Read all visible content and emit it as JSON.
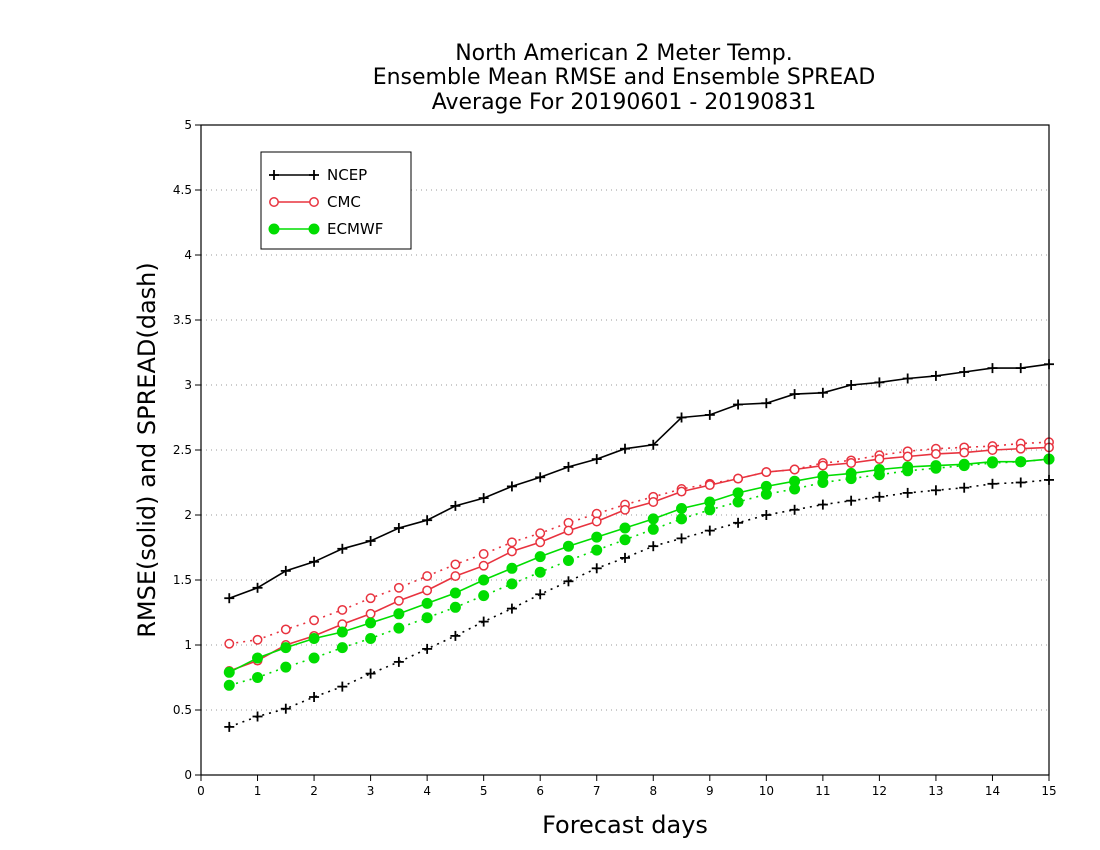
{
  "chart_data": {
    "type": "line",
    "title": [
      "North American 2 Meter Temp.",
      "Ensemble Mean RMSE and Ensemble SPREAD",
      "Average For 20190601 - 20190831"
    ],
    "xlabel": "Forecast days",
    "ylabel": "RMSE(solid) and SPREAD(dash)",
    "xlim": [
      0,
      15
    ],
    "ylim": [
      0,
      5
    ],
    "x_ticks": [
      "0",
      "1",
      "2",
      "3",
      "4",
      "5",
      "6",
      "7",
      "8",
      "9",
      "10",
      "11",
      "12",
      "13",
      "14",
      "15"
    ],
    "y_ticks": [
      "0",
      "0.5",
      "1",
      "1.5",
      "2",
      "2.5",
      "3",
      "3.5",
      "4",
      "4.5",
      "5"
    ],
    "grid": "horizontal dotted",
    "legend_position": "top-left",
    "x": [
      0.5,
      1,
      1.5,
      2,
      2.5,
      3,
      3.5,
      4,
      4.5,
      5,
      5.5,
      6,
      6.5,
      7,
      7.5,
      8,
      8.5,
      9,
      9.5,
      10,
      10.5,
      11,
      11.5,
      12,
      12.5,
      13,
      13.5,
      14,
      14.5,
      15
    ],
    "series": [
      {
        "name": "NCEP",
        "color": "#000000",
        "marker": "plus",
        "rmse": [
          1.36,
          1.44,
          1.57,
          1.64,
          1.74,
          1.8,
          1.9,
          1.96,
          2.07,
          2.13,
          2.22,
          2.29,
          2.37,
          2.43,
          2.51,
          2.54,
          2.75,
          2.77,
          2.85,
          2.86,
          2.93,
          2.94,
          3.0,
          3.02,
          3.05,
          3.07,
          3.1,
          3.13,
          3.13,
          3.16
        ],
        "spread": [
          0.37,
          0.45,
          0.51,
          0.6,
          0.68,
          0.78,
          0.87,
          0.97,
          1.07,
          1.18,
          1.28,
          1.39,
          1.49,
          1.59,
          1.67,
          1.76,
          1.82,
          1.88,
          1.94,
          2.0,
          2.04,
          2.08,
          2.11,
          2.14,
          2.17,
          2.19,
          2.21,
          2.24,
          2.25,
          2.27
        ]
      },
      {
        "name": "CMC",
        "color": "#e8333f",
        "marker": "open-circle",
        "rmse": [
          0.8,
          0.88,
          1.0,
          1.07,
          1.16,
          1.24,
          1.34,
          1.42,
          1.53,
          1.61,
          1.72,
          1.79,
          1.88,
          1.95,
          2.04,
          2.1,
          2.18,
          2.23,
          2.28,
          2.33,
          2.35,
          2.38,
          2.4,
          2.43,
          2.45,
          2.47,
          2.48,
          2.5,
          2.51,
          2.52
        ],
        "spread": [
          1.01,
          1.04,
          1.12,
          1.19,
          1.27,
          1.36,
          1.44,
          1.53,
          1.62,
          1.7,
          1.79,
          1.86,
          1.94,
          2.01,
          2.08,
          2.14,
          2.2,
          2.24,
          2.28,
          2.33,
          2.35,
          2.4,
          2.42,
          2.46,
          2.49,
          2.51,
          2.52,
          2.53,
          2.55,
          2.56
        ]
      },
      {
        "name": "ECMWF",
        "color": "#00dd00",
        "marker": "filled-circle",
        "rmse": [
          0.79,
          0.9,
          0.98,
          1.05,
          1.1,
          1.17,
          1.24,
          1.32,
          1.4,
          1.5,
          1.59,
          1.68,
          1.76,
          1.83,
          1.9,
          1.97,
          2.05,
          2.1,
          2.17,
          2.22,
          2.26,
          2.3,
          2.32,
          2.35,
          2.37,
          2.38,
          2.39,
          2.41,
          2.41,
          2.43
        ],
        "spread": [
          0.69,
          0.75,
          0.83,
          0.9,
          0.98,
          1.05,
          1.13,
          1.21,
          1.29,
          1.38,
          1.47,
          1.56,
          1.65,
          1.73,
          1.81,
          1.89,
          1.97,
          2.04,
          2.1,
          2.16,
          2.2,
          2.25,
          2.28,
          2.31,
          2.34,
          2.36,
          2.38,
          2.4,
          2.41,
          2.43
        ]
      }
    ]
  }
}
